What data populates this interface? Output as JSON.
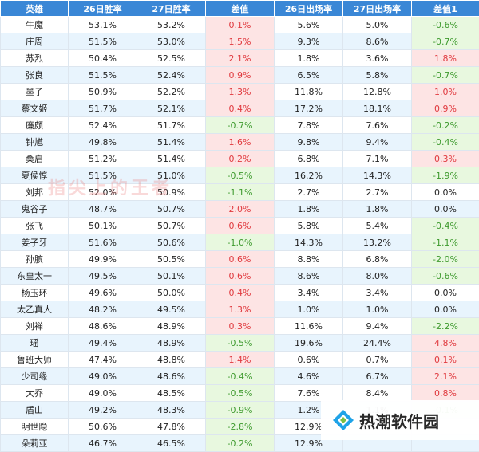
{
  "headers": [
    "英雄",
    "26日胜率",
    "27日胜率",
    "差值",
    "26日出场率",
    "27日出场率",
    "差值1"
  ],
  "rows": [
    {
      "hero": "牛魔",
      "w26": "53.1%",
      "w27": "53.2%",
      "d": "0.1%",
      "dc": "pos",
      "p26": "5.6%",
      "p27": "5.0%",
      "d1": "-0.6%",
      "d1c": "neg"
    },
    {
      "hero": "庄周",
      "w26": "51.5%",
      "w27": "53.0%",
      "d": "1.5%",
      "dc": "pos",
      "p26": "9.3%",
      "p27": "8.6%",
      "d1": "-0.7%",
      "d1c": "neg"
    },
    {
      "hero": "苏烈",
      "w26": "50.4%",
      "w27": "52.5%",
      "d": "2.1%",
      "dc": "pos",
      "p26": "1.8%",
      "p27": "3.6%",
      "d1": "1.8%",
      "d1c": "pos"
    },
    {
      "hero": "张良",
      "w26": "51.5%",
      "w27": "52.4%",
      "d": "0.9%",
      "dc": "pos",
      "p26": "6.5%",
      "p27": "5.8%",
      "d1": "-0.7%",
      "d1c": "neg"
    },
    {
      "hero": "墨子",
      "w26": "50.9%",
      "w27": "52.2%",
      "d": "1.3%",
      "dc": "pos",
      "p26": "11.8%",
      "p27": "12.8%",
      "d1": "1.0%",
      "d1c": "pos"
    },
    {
      "hero": "蔡文姬",
      "w26": "51.7%",
      "w27": "52.1%",
      "d": "0.4%",
      "dc": "pos",
      "p26": "17.2%",
      "p27": "18.1%",
      "d1": "0.9%",
      "d1c": "pos"
    },
    {
      "hero": "廉颇",
      "w26": "52.4%",
      "w27": "51.7%",
      "d": "-0.7%",
      "dc": "neg",
      "p26": "7.8%",
      "p27": "7.6%",
      "d1": "-0.2%",
      "d1c": "neg"
    },
    {
      "hero": "钟馗",
      "w26": "49.8%",
      "w27": "51.4%",
      "d": "1.6%",
      "dc": "pos",
      "p26": "9.8%",
      "p27": "9.4%",
      "d1": "-0.4%",
      "d1c": "neg"
    },
    {
      "hero": "桑启",
      "w26": "51.2%",
      "w27": "51.4%",
      "d": "0.2%",
      "dc": "pos",
      "p26": "6.8%",
      "p27": "7.1%",
      "d1": "0.3%",
      "d1c": "pos"
    },
    {
      "hero": "夏侯惇",
      "w26": "51.5%",
      "w27": "51.0%",
      "d": "-0.5%",
      "dc": "neg",
      "p26": "16.2%",
      "p27": "14.3%",
      "d1": "-1.9%",
      "d1c": "neg"
    },
    {
      "hero": "刘邦",
      "w26": "52.0%",
      "w27": "50.9%",
      "d": "-1.1%",
      "dc": "neg",
      "p26": "2.7%",
      "p27": "2.7%",
      "d1": "0.0%",
      "d1c": "zero"
    },
    {
      "hero": "鬼谷子",
      "w26": "48.7%",
      "w27": "50.7%",
      "d": "2.0%",
      "dc": "pos",
      "p26": "1.8%",
      "p27": "1.8%",
      "d1": "0.0%",
      "d1c": "zero"
    },
    {
      "hero": "张飞",
      "w26": "50.1%",
      "w27": "50.7%",
      "d": "0.6%",
      "dc": "pos",
      "p26": "5.8%",
      "p27": "5.4%",
      "d1": "-0.4%",
      "d1c": "neg"
    },
    {
      "hero": "姜子牙",
      "w26": "51.6%",
      "w27": "50.6%",
      "d": "-1.0%",
      "dc": "neg",
      "p26": "14.3%",
      "p27": "13.2%",
      "d1": "-1.1%",
      "d1c": "neg"
    },
    {
      "hero": "孙膑",
      "w26": "49.9%",
      "w27": "50.5%",
      "d": "0.6%",
      "dc": "pos",
      "p26": "8.8%",
      "p27": "6.8%",
      "d1": "-2.0%",
      "d1c": "neg"
    },
    {
      "hero": "东皇太一",
      "w26": "49.5%",
      "w27": "50.1%",
      "d": "0.6%",
      "dc": "pos",
      "p26": "8.6%",
      "p27": "8.0%",
      "d1": "-0.6%",
      "d1c": "neg"
    },
    {
      "hero": "杨玉环",
      "w26": "49.6%",
      "w27": "50.0%",
      "d": "0.4%",
      "dc": "pos",
      "p26": "3.4%",
      "p27": "3.4%",
      "d1": "0.0%",
      "d1c": "zero"
    },
    {
      "hero": "太乙真人",
      "w26": "48.2%",
      "w27": "49.5%",
      "d": "1.3%",
      "dc": "pos",
      "p26": "1.0%",
      "p27": "1.0%",
      "d1": "0.0%",
      "d1c": "zero"
    },
    {
      "hero": "刘禅",
      "w26": "48.6%",
      "w27": "48.9%",
      "d": "0.3%",
      "dc": "pos",
      "p26": "11.6%",
      "p27": "9.4%",
      "d1": "-2.2%",
      "d1c": "neg"
    },
    {
      "hero": "瑶",
      "w26": "49.4%",
      "w27": "48.9%",
      "d": "-0.5%",
      "dc": "neg",
      "p26": "19.6%",
      "p27": "24.4%",
      "d1": "4.8%",
      "d1c": "pos"
    },
    {
      "hero": "鲁班大师",
      "w26": "47.4%",
      "w27": "48.8%",
      "d": "1.4%",
      "dc": "pos",
      "p26": "0.6%",
      "p27": "0.7%",
      "d1": "0.1%",
      "d1c": "pos"
    },
    {
      "hero": "少司缘",
      "w26": "49.0%",
      "w27": "48.6%",
      "d": "-0.4%",
      "dc": "neg",
      "p26": "4.6%",
      "p27": "6.7%",
      "d1": "2.1%",
      "d1c": "pos"
    },
    {
      "hero": "大乔",
      "w26": "49.0%",
      "w27": "48.5%",
      "d": "-0.5%",
      "dc": "neg",
      "p26": "7.6%",
      "p27": "8.4%",
      "d1": "0.8%",
      "d1c": "pos"
    },
    {
      "hero": "盾山",
      "w26": "49.2%",
      "w27": "48.3%",
      "d": "-0.9%",
      "dc": "neg",
      "p26": "1.2%",
      "p27": "1.1%",
      "d1": "-0.1%",
      "d1c": "neg"
    },
    {
      "hero": "明世隐",
      "w26": "50.6%",
      "w27": "47.8%",
      "d": "-2.8%",
      "dc": "neg",
      "p26": "12.9%",
      "p27": "",
      "d1": "",
      "d1c": "zero"
    },
    {
      "hero": "朵莉亚",
      "w26": "46.7%",
      "w27": "46.5%",
      "d": "-0.2%",
      "dc": "neg",
      "p26": "12.9%",
      "p27": "",
      "d1": "",
      "d1c": "zero"
    }
  ],
  "watermark_text": "指尖上的王者",
  "brand": {
    "text": "热潮软件园",
    "icon": "diamond-logo-icon"
  },
  "colors": {
    "header_bg": "#3a87d6",
    "stripe": "#e8f4fd",
    "pos_bg": "#fde4e4",
    "pos_text": "#e0393e",
    "neg_bg": "#e8f8df",
    "neg_text": "#3e9a2e"
  }
}
